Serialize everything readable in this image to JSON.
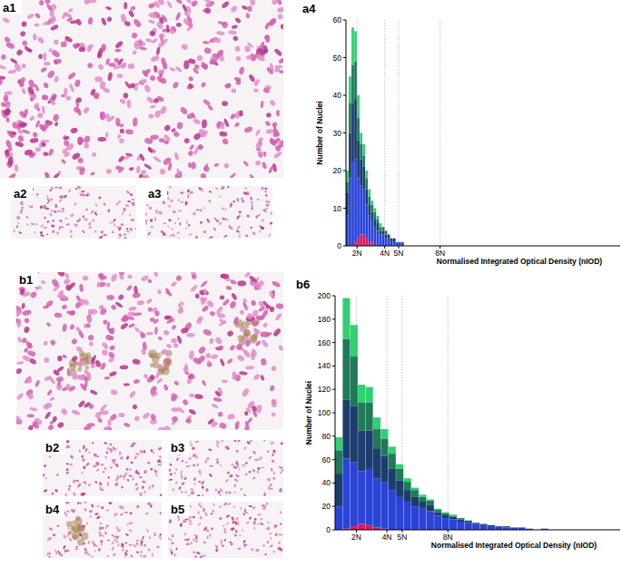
{
  "image_labels": [
    "a1",
    "a2",
    "a3",
    "b1",
    "b2",
    "b3",
    "b4",
    "b5"
  ],
  "chart_data": [
    {
      "type": "histogram",
      "title": "a4",
      "stacked": true,
      "grid": true,
      "x_label": "Normalised Integrated Optical Density (nIOD)",
      "y_label": "Number of Nuclei",
      "xlim": [
        1.2,
        21
      ],
      "ylim": [
        0,
        60
      ],
      "xticks": [
        {
          "value": 2,
          "label": "2N"
        },
        {
          "value": 4,
          "label": "4N"
        },
        {
          "value": 5,
          "label": "5N"
        },
        {
          "value": 8,
          "label": "8N"
        }
      ],
      "yticks": [
        0,
        10,
        20,
        30,
        40,
        50,
        60
      ],
      "bins": [
        1.2,
        1.4,
        1.6,
        1.8,
        2.0,
        2.2,
        2.4,
        2.6,
        2.8,
        3.0,
        3.2,
        3.4,
        3.6,
        3.8,
        4.0,
        4.2,
        4.4,
        4.6,
        4.8,
        5.0,
        5.2,
        5.4
      ],
      "series": [
        {
          "color": "#d81b60",
          "values": [
            0,
            0,
            0,
            1,
            2,
            3,
            3,
            2,
            1,
            1,
            0,
            0,
            0,
            0,
            0,
            0,
            0,
            0,
            0,
            0,
            0
          ]
        },
        {
          "color": "#2a44d8",
          "values": [
            8,
            18,
            22,
            22,
            16,
            13,
            12,
            9,
            7,
            6,
            5,
            4,
            3,
            3,
            2,
            2,
            1,
            1,
            1,
            1,
            1
          ]
        },
        {
          "color": "#1c3d6e",
          "values": [
            6,
            12,
            16,
            16,
            10,
            7,
            6,
            4,
            3,
            2,
            2,
            2,
            1,
            1,
            1,
            1,
            1,
            1,
            0,
            0,
            0
          ]
        },
        {
          "color": "#1f7a58",
          "values": [
            3,
            8,
            10,
            10,
            6,
            4,
            3,
            3,
            2,
            2,
            2,
            1,
            1,
            1,
            1,
            0,
            0,
            0,
            0,
            0,
            0
          ]
        },
        {
          "color": "#2fcf72",
          "values": [
            3,
            7,
            10,
            8,
            6,
            3,
            3,
            2,
            2,
            1,
            1,
            1,
            1,
            0,
            0,
            0,
            0,
            0,
            0,
            0,
            0
          ]
        }
      ]
    },
    {
      "type": "histogram",
      "title": "b6",
      "stacked": true,
      "grid": true,
      "x_label": "Normalised Integrated Optical Density (nIOD)",
      "y_label": "Number of Nuclei",
      "xlim": [
        0.6,
        19.3
      ],
      "ylim": [
        0,
        200
      ],
      "xticks": [
        {
          "value": 2,
          "label": "2N"
        },
        {
          "value": 4,
          "label": "4N"
        },
        {
          "value": 5,
          "label": "5N"
        },
        {
          "value": 8,
          "label": "8N"
        }
      ],
      "yticks": [
        0,
        20,
        40,
        60,
        80,
        100,
        120,
        140,
        160,
        180,
        200
      ],
      "bins": [
        0.6,
        1.1,
        1.6,
        2.1,
        2.6,
        3.1,
        3.6,
        4.1,
        4.6,
        5.1,
        5.6,
        6.1,
        6.6,
        7.1,
        7.6,
        8.1,
        8.6,
        9.1,
        9.6,
        10.1,
        10.6,
        11.1,
        11.6,
        12.1,
        12.6,
        13.1,
        13.6,
        14.1,
        14.6
      ],
      "series": [
        {
          "color": "#d81b60",
          "values": [
            0,
            1,
            3,
            5,
            4,
            2,
            1,
            0,
            0,
            0,
            0,
            0,
            0,
            0,
            0,
            0,
            0,
            0,
            0,
            0,
            0,
            0,
            0,
            0,
            0,
            0,
            0,
            0
          ]
        },
        {
          "color": "#2a44d8",
          "values": [
            20,
            60,
            55,
            45,
            48,
            42,
            40,
            34,
            28,
            24,
            20,
            18,
            16,
            12,
            10,
            9,
            7,
            6,
            5,
            4,
            3,
            3,
            2,
            2,
            2,
            1,
            0,
            1
          ]
        },
        {
          "color": "#1c3d6e",
          "values": [
            28,
            50,
            48,
            35,
            33,
            25,
            22,
            18,
            14,
            10,
            8,
            6,
            5,
            3,
            3,
            2,
            2,
            1,
            1,
            1,
            1,
            0,
            1,
            0,
            0,
            0,
            0,
            0
          ]
        },
        {
          "color": "#1f7a58",
          "values": [
            20,
            52,
            42,
            24,
            24,
            17,
            15,
            13,
            10,
            7,
            6,
            4,
            4,
            2,
            1,
            1,
            1,
            1,
            0,
            0,
            0,
            0,
            0,
            0,
            0,
            0,
            0,
            0
          ]
        },
        {
          "color": "#2fcf72",
          "values": [
            11,
            35,
            27,
            15,
            13,
            10,
            8,
            6,
            4,
            3,
            2,
            2,
            1,
            1,
            1,
            1,
            0,
            0,
            0,
            0,
            0,
            0,
            0,
            0,
            0,
            0,
            0,
            0
          ]
        }
      ]
    }
  ]
}
